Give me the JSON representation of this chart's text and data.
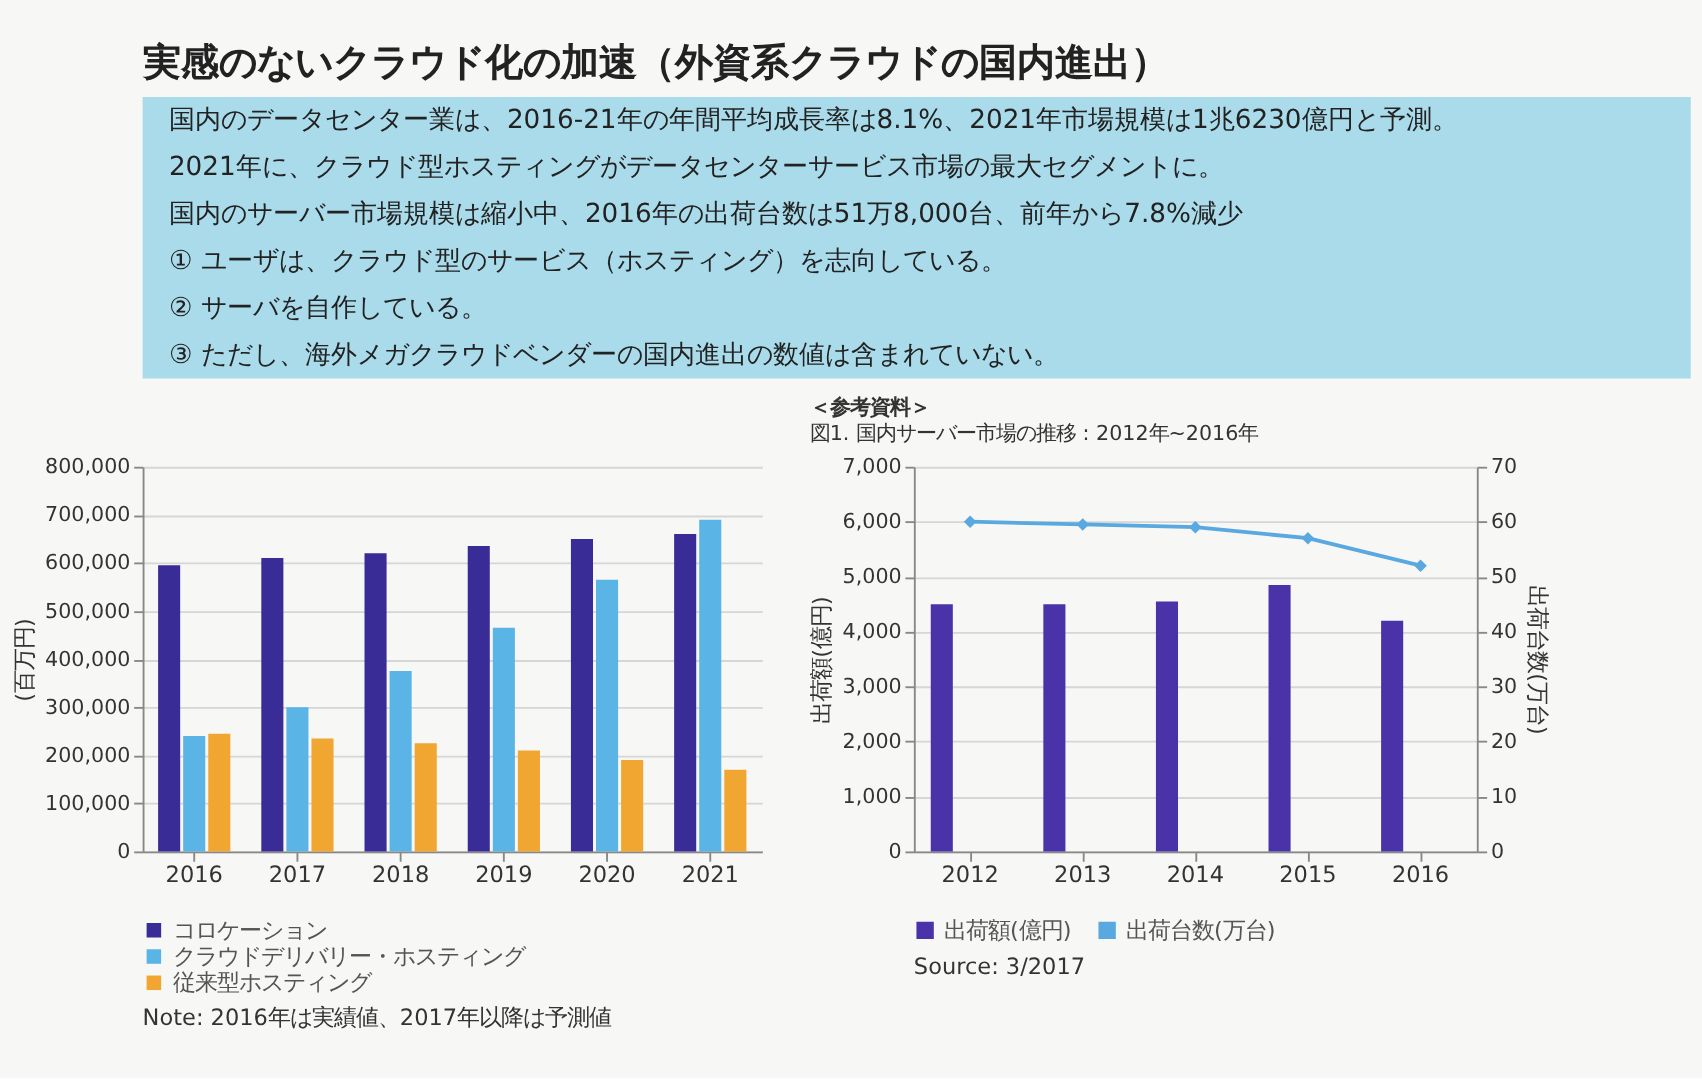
{
  "chart_data": [
    {
      "type": "other",
      "title": "実感のないクラウド化の加速（外資系クラウドの国内進出）",
      "annotations": [
        "国内のデータセンター業は、2016-21年の年間平均成長率は8.1%、2021年市場規模は1兆6230億円と予測。",
        "2021年に、クラウド型ホスティングがデータセンターサービス市場の最大セグメントに。",
        "国内のサーバー市場規模は縮小中、2016年の出荷台数は51万8,000台、前年から7.8%減少",
        "① ユーザは、クラウド型のサービス（ホスティング）を志向している。",
        "② サーバを自作している。",
        "③ ただし、海外メガクラウドベンダーの国内進出の数値は含まれていない。"
      ]
    },
    {
      "type": "bar",
      "categories": [
        "2016",
        "2017",
        "2018",
        "2019",
        "2020",
        "2021"
      ],
      "series": [
        {
          "name": "コロケーション",
          "color": "#3a2c96",
          "values": [
            595000,
            610000,
            620000,
            635000,
            650000,
            660000
          ]
        },
        {
          "name": "クラウドデリバリー・ホスティング",
          "color": "#5ab4e6",
          "values": [
            240000,
            300000,
            375000,
            465000,
            565000,
            690000
          ]
        },
        {
          "name": "従来型ホスティング",
          "color": "#f0a630",
          "values": [
            245000,
            235000,
            225000,
            210000,
            190000,
            170000
          ]
        }
      ],
      "ylabel": "(百万円)",
      "ylim": [
        0,
        800000
      ],
      "yticks": [
        0,
        {
          "value": 100000,
          "label": "100,000"
        },
        {
          "value": 200000,
          "label": "200,000"
        },
        {
          "value": 300000,
          "label": "300,000"
        },
        {
          "value": 400000,
          "label": "400,000"
        },
        {
          "value": 500000,
          "label": "500,000"
        },
        {
          "value": 600000,
          "label": "600,000"
        },
        {
          "value": 700000,
          "label": "700,000"
        },
        {
          "value": 800000,
          "label": "800,000"
        }
      ],
      "grid": "y",
      "legend": "bottom",
      "annotations": [
        "Note: 2016年は実績値、2017年以降は予測値"
      ]
    },
    {
      "type": "bar",
      "title": "＜参考資料＞",
      "subtitle": "図1. 国内サーバー市場の推移 : 2012年~2016年",
      "categories": [
        "2012",
        "2013",
        "2014",
        "2015",
        "2016"
      ],
      "series": [
        {
          "name": "出荷額(億円)",
          "color": "#4a32a8",
          "values": [
            4500,
            4500,
            4550,
            4850,
            4200
          ]
        },
        {
          "name": "出荷台数(万台)",
          "type": "line",
          "axis": "y2",
          "color": "#5aa8e0",
          "values": [
            60,
            59.5,
            59,
            57,
            52
          ]
        }
      ],
      "ylabel": "出荷額(億円)",
      "y2label": "出荷台数(万台)",
      "ylim": [
        0,
        7000
      ],
      "yticks": [
        0,
        {
          "value": 1000,
          "label": "1,000"
        },
        {
          "value": 2000,
          "label": "2,000"
        },
        {
          "value": 3000,
          "label": "3,000"
        },
        {
          "value": 4000,
          "label": "4,000"
        },
        {
          "value": 5000,
          "label": "5,000"
        },
        {
          "value": 6000,
          "label": "6,000"
        },
        {
          "value": 7000,
          "label": "7,000"
        }
      ],
      "y2lim": [
        0,
        70
      ],
      "y2ticks": [
        0,
        10,
        20,
        30,
        40,
        50,
        60,
        70
      ],
      "marker": "diamond",
      "grid": "y",
      "legend": "bottom",
      "annotations": [
        "Source: 3/2017"
      ]
    }
  ]
}
